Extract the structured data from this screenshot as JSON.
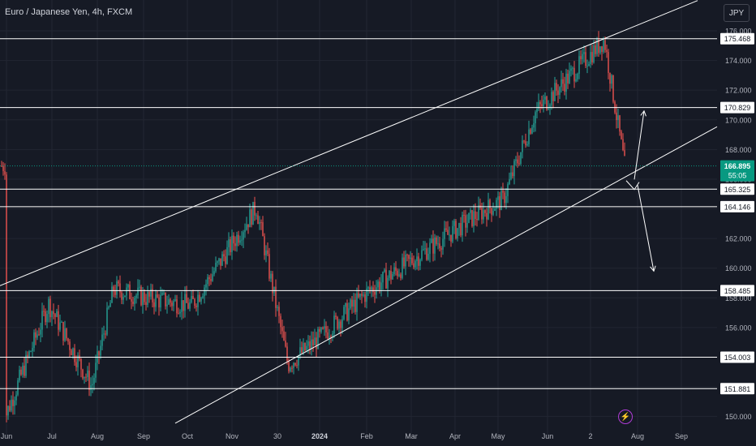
{
  "header": {
    "symbol_title": "Euro / Japanese Yen, 4h, FXCM",
    "currency_button": "JPY"
  },
  "colors": {
    "background": "#161a25",
    "grid": "#222632",
    "up": "#26a69a",
    "down": "#ef5350",
    "line": "#ffffff",
    "price_badge": "#089981",
    "axis_text": "#b2b5be"
  },
  "chart_data": {
    "type": "candlestick",
    "symbol": "Euro / Japanese Yen, 4h, FXCM",
    "x_ticks": [
      "Jun",
      "Jul",
      "Aug",
      "Sep",
      "Oct",
      "Nov",
      "30",
      "2024",
      "Feb",
      "Mar",
      "Apr",
      "May",
      "Jun",
      "2",
      "Aug",
      "Sep"
    ],
    "y_ticks": [
      "176.000",
      "174.000",
      "172.000",
      "170.000",
      "168.000",
      "166.000",
      "164.000",
      "162.000",
      "160.000",
      "158.000",
      "156.000",
      "154.000",
      "152.000",
      "150.000"
    ],
    "ylim": [
      149.6,
      176.6
    ],
    "current_price": "166.895",
    "countdown": "55:05",
    "price_path": [
      [
        "Jun",
        150.2
      ],
      [
        "Jul",
        157.6
      ],
      [
        "Aug",
        152.0
      ],
      [
        "Aug",
        158.6
      ],
      [
        "Sep",
        158.0
      ],
      [
        "Oct",
        157.5
      ],
      [
        "Nov",
        164.1
      ],
      [
        "30",
        153.5
      ],
      [
        "2024",
        155.5
      ],
      [
        "Feb",
        158.5
      ],
      [
        "Mar",
        161.0
      ],
      [
        "Apr",
        163.5
      ],
      [
        "May",
        164.6
      ],
      [
        "Jun",
        170.5
      ],
      [
        "2",
        175.4
      ],
      [
        "Aug",
        166.9
      ]
    ],
    "horizontal_levels": [
      "175.468",
      "170.829",
      "165.325",
      "164.146",
      "158.485",
      "154.003",
      "151.881"
    ],
    "channel": {
      "upper": [
        [
          "Jun",
          159.0
        ],
        [
          "2",
          175.468
        ]
      ],
      "lower": [
        [
          "Oct",
          150.0
        ],
        [
          "Aug",
          166.6
        ]
      ]
    },
    "projections": [
      {
        "from": 166.2,
        "to": 170.6,
        "direction": "up"
      },
      {
        "from": 165.6,
        "to": 159.8,
        "direction": "down"
      }
    ]
  }
}
